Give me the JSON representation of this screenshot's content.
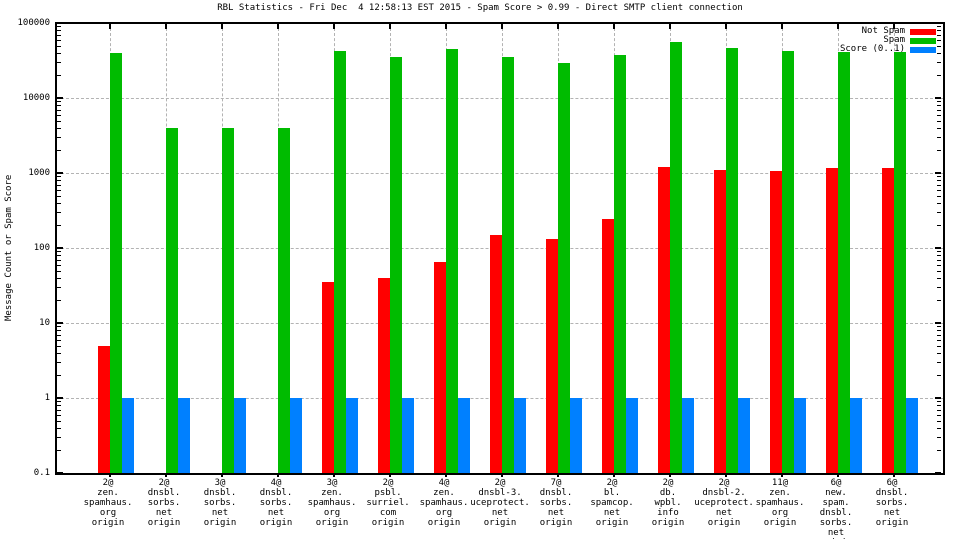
{
  "title": "RBL Statistics - Fri Dec  4 12:58:13 EST 2015 - Spam Score > 0.99 - Direct SMTP client connection",
  "y_axis": {
    "label": "Message Count or Spam Score",
    "tick_labels": [
      "100000",
      "10000",
      "1000",
      "100",
      "10",
      "1",
      "0.1"
    ]
  },
  "legend": {
    "entries": [
      {
        "label": "Not Spam",
        "color": "#ff0000"
      },
      {
        "label": "Spam",
        "color": "#00bb00"
      },
      {
        "label": "Score (0..1)",
        "color": "#0080ff"
      }
    ]
  },
  "colors": {
    "not_spam": "#ff0000",
    "spam": "#00bb00",
    "score": "#0080ff",
    "grid": "#b3b3b3",
    "axis": "#000000",
    "background": "#ffffff"
  },
  "chart_data": {
    "type": "bar",
    "title": "RBL Statistics - Fri Dec  4 12:58:13 EST 2015 - Spam Score > 0.99 - Direct SMTP client connection",
    "xlabel": "",
    "ylabel": "Message Count or Spam Score",
    "y_scale": "log",
    "ylim": [
      0.1,
      100000
    ],
    "grid": true,
    "legend_position": "top-right",
    "categories": [
      "2@ zen.spamhaus.org origin",
      "2@ dnsbl.sorbs.net origin",
      "3@ dnsbl.sorbs.net origin",
      "4@ dnsbl.sorbs.net origin",
      "3@ zen.spamhaus.org origin",
      "2@ psbl.surriel.com origin",
      "4@ zen.spamhaus.org origin",
      "2@ dnsbl-3.uceprotect.net origin",
      "7@ dnsbl.sorbs.net origin",
      "2@ bl.spamcop.net origin",
      "2@ db.wpbl.info origin",
      "2@ dnsbl-2.uceprotect.net origin",
      "11@ zen.spamhaus.org origin",
      "6@ new.spam.dnsbl.sorbs.net origin",
      "6@ dnsbl.sorbs.net origin"
    ],
    "category_label_lines": [
      [
        "2@",
        "zen.",
        "spamhaus.",
        "org",
        "origin"
      ],
      [
        "2@",
        "dnsbl.",
        "sorbs.",
        "net",
        "origin"
      ],
      [
        "3@",
        "dnsbl.",
        "sorbs.",
        "net",
        "origin"
      ],
      [
        "4@",
        "dnsbl.",
        "sorbs.",
        "net",
        "origin"
      ],
      [
        "3@",
        "zen.",
        "spamhaus.",
        "org",
        "origin"
      ],
      [
        "2@",
        "psbl.",
        "surriel.",
        "com",
        "origin"
      ],
      [
        "4@",
        "zen.",
        "spamhaus.",
        "org",
        "origin"
      ],
      [
        "2@",
        "dnsbl-3.",
        "uceprotect.",
        "net",
        "origin"
      ],
      [
        "7@",
        "dnsbl.",
        "sorbs.",
        "net",
        "origin"
      ],
      [
        "2@",
        "bl.",
        "spamcop.",
        "net",
        "origin"
      ],
      [
        "2@",
        "db.",
        "wpbl.",
        "info",
        "origin"
      ],
      [
        "2@",
        "dnsbl-2.",
        "uceprotect.",
        "net",
        "origin"
      ],
      [
        "11@",
        "zen.",
        "spamhaus.",
        "org",
        "origin"
      ],
      [
        "6@",
        "new.",
        "spam.",
        "dnsbl.",
        "sorbs.",
        "net",
        "origin"
      ],
      [
        "6@",
        "dnsbl.",
        "sorbs.",
        "net",
        "origin"
      ]
    ],
    "series": [
      {
        "name": "Not Spam",
        "color": "#ff0000",
        "values": [
          5,
          0,
          0,
          0,
          35,
          40,
          65,
          150,
          130,
          240,
          1200,
          1100,
          1050,
          1150,
          1150
        ]
      },
      {
        "name": "Spam",
        "color": "#00bb00",
        "values": [
          40000,
          4000,
          4000,
          4000,
          42000,
          35000,
          45000,
          35000,
          29000,
          38000,
          56000,
          46000,
          42000,
          41000,
          41000
        ]
      },
      {
        "name": "Score (0..1)",
        "color": "#0080ff",
        "values": [
          1,
          1,
          1,
          1,
          1,
          1,
          1,
          1,
          1,
          1,
          1,
          1,
          1,
          1,
          1
        ]
      }
    ]
  }
}
